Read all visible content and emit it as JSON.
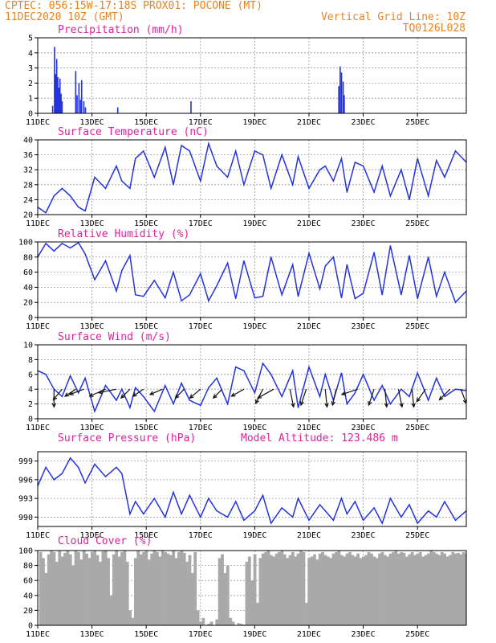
{
  "header": {
    "line1": "CPTEC:  056:15W-17:18S  PROX01: POCONE (MT)",
    "line2": "11DEC2020 10Z (GMT)",
    "grid_note": "Vertical Grid Line: 10Z",
    "code": "TQ0126L028"
  },
  "model_altitude": "Model Altitude: 123.486 m",
  "x_ticks": [
    "11DEC",
    "13DEC",
    "15DEC",
    "17DEC",
    "19DEC",
    "21DEC",
    "23DEC",
    "25DEC"
  ],
  "colors": {
    "line": "#2233dd",
    "title": "#e0209a",
    "header": "#e8821e",
    "cloud": "#a9a9a9"
  },
  "chart_data": [
    {
      "type": "bar",
      "title": "Precipitation (mm/h)",
      "ylim": [
        0,
        5
      ],
      "yticks": [
        "0",
        "1",
        "2",
        "3",
        "4",
        "5"
      ],
      "x_unit": "days since 11DEC 10Z",
      "points": [
        [
          0.55,
          0.5
        ],
        [
          0.62,
          4.4
        ],
        [
          0.66,
          2.6
        ],
        [
          0.7,
          3.6
        ],
        [
          0.74,
          2.4
        ],
        [
          0.78,
          1.7
        ],
        [
          0.82,
          2.3
        ],
        [
          0.86,
          1.3
        ],
        [
          0.9,
          0.8
        ],
        [
          1.4,
          2.8
        ],
        [
          1.45,
          1.2
        ],
        [
          1.52,
          2.0
        ],
        [
          1.58,
          0.9
        ],
        [
          1.62,
          2.2
        ],
        [
          1.7,
          0.8
        ],
        [
          1.76,
          0.4
        ],
        [
          2.95,
          0.4
        ],
        [
          5.65,
          0.8
        ],
        [
          11.1,
          1.8
        ],
        [
          11.15,
          3.1
        ],
        [
          11.2,
          2.7
        ],
        [
          11.26,
          2.1
        ],
        [
          11.3,
          1.2
        ]
      ]
    },
    {
      "type": "line",
      "title": "Surface Temperature (nC)",
      "ylim": [
        20,
        40
      ],
      "yticks": [
        "20",
        "24",
        "28",
        "32",
        "36",
        "40"
      ],
      "x": [
        0,
        0.3,
        0.6,
        0.9,
        1.2,
        1.5,
        1.75,
        2.1,
        2.5,
        2.9,
        3.1,
        3.4,
        3.6,
        3.9,
        4.3,
        4.7,
        5.0,
        5.3,
        5.6,
        6.0,
        6.3,
        6.6,
        7.0,
        7.3,
        7.6,
        8.0,
        8.3,
        8.6,
        9.0,
        9.4,
        9.6,
        10.0,
        10.4,
        10.6,
        10.9,
        11.2,
        11.4,
        11.7,
        12.0,
        12.4,
        12.7,
        13.0,
        13.4,
        13.7,
        14.0,
        14.4,
        14.7,
        15.0,
        15.4,
        15.8
      ],
      "values": [
        22,
        20.5,
        25,
        27,
        25,
        22,
        21,
        30,
        27,
        33,
        29,
        27,
        35,
        37,
        30,
        38,
        28,
        38.5,
        37,
        29,
        39,
        33,
        30,
        37,
        28,
        37,
        36,
        27,
        36,
        28,
        35.5,
        27,
        32,
        33,
        29,
        35,
        26,
        34,
        33,
        26,
        33,
        25,
        32,
        24,
        35,
        25,
        34.5,
        30,
        37,
        34
      ]
    },
    {
      "type": "line",
      "title": "Relative Humidity (%)",
      "ylim": [
        0,
        100
      ],
      "yticks": [
        "0",
        "20",
        "40",
        "60",
        "80",
        "100"
      ],
      "x": [
        0,
        0.3,
        0.6,
        0.9,
        1.2,
        1.5,
        1.75,
        2.1,
        2.5,
        2.9,
        3.1,
        3.4,
        3.6,
        3.9,
        4.3,
        4.7,
        5.0,
        5.3,
        5.6,
        6.0,
        6.3,
        6.6,
        7.0,
        7.3,
        7.6,
        8.0,
        8.3,
        8.6,
        9.0,
        9.4,
        9.6,
        10.0,
        10.4,
        10.6,
        10.9,
        11.2,
        11.4,
        11.7,
        12.0,
        12.4,
        12.7,
        13.0,
        13.4,
        13.7,
        14.0,
        14.4,
        14.7,
        15.0,
        15.4,
        15.8
      ],
      "values": [
        80,
        98,
        88,
        98,
        92,
        99,
        84,
        50,
        75,
        35,
        62,
        82,
        30,
        28,
        49,
        26,
        60,
        22,
        30,
        58,
        22,
        42,
        72,
        25,
        75,
        26,
        28,
        80,
        30,
        70,
        28,
        85,
        38,
        68,
        80,
        26,
        70,
        25,
        32,
        86,
        30,
        95,
        30,
        82,
        25,
        80,
        28,
        60,
        20,
        35
      ]
    },
    {
      "type": "line",
      "title": "Surface Wind (m/s)",
      "ylim": [
        0,
        10
      ],
      "yticks": [
        "0",
        "2",
        "4",
        "6",
        "8",
        "10"
      ],
      "x": [
        0,
        0.3,
        0.6,
        0.9,
        1.2,
        1.5,
        1.75,
        2.1,
        2.5,
        2.9,
        3.1,
        3.4,
        3.6,
        3.9,
        4.3,
        4.7,
        5.0,
        5.3,
        5.6,
        6.0,
        6.3,
        6.6,
        7.0,
        7.3,
        7.6,
        8.0,
        8.3,
        8.6,
        9.0,
        9.4,
        9.6,
        10.0,
        10.4,
        10.6,
        10.9,
        11.2,
        11.4,
        11.7,
        12.0,
        12.4,
        12.7,
        13.0,
        13.4,
        13.7,
        14.0,
        14.4,
        14.7,
        15.0,
        15.4,
        15.8
      ],
      "values": [
        6.5,
        6.0,
        4.0,
        3.0,
        5.8,
        3.5,
        5.5,
        1.0,
        4.5,
        2.5,
        4.0,
        1.5,
        4.2,
        3.0,
        1.0,
        4.5,
        2.0,
        4.8,
        2.5,
        1.8,
        4.2,
        5.5,
        2.0,
        7.0,
        6.5,
        3.5,
        7.5,
        6.0,
        3.0,
        6.5,
        1.5,
        7.0,
        3.0,
        6.0,
        2.5,
        6.2,
        2.0,
        3.5,
        6.0,
        2.5,
        4.5,
        2.0,
        4.0,
        3.0,
        6.2,
        2.5,
        5.5,
        3.0,
        4.0,
        3.8
      ],
      "wind_arrows": [
        [
          0.6,
          0,
          -1
        ],
        [
          0.9,
          -0.5,
          -0.6
        ],
        [
          1.4,
          -0.6,
          -0.4
        ],
        [
          1.7,
          -0.8,
          -0.3
        ],
        [
          2.5,
          -0.9,
          -0.4
        ],
        [
          2.9,
          -1.0,
          -0.2
        ],
        [
          3.4,
          -0.5,
          -0.5
        ],
        [
          3.9,
          -0.6,
          -0.4
        ],
        [
          4.6,
          -0.7,
          -0.3
        ],
        [
          5.4,
          -0.5,
          -0.5
        ],
        [
          6.0,
          -0.6,
          -0.5
        ],
        [
          6.8,
          -0.5,
          -0.5
        ],
        [
          7.6,
          -0.7,
          -0.4
        ],
        [
          8.3,
          -0.4,
          -0.8
        ],
        [
          8.7,
          -0.9,
          -0.5
        ],
        [
          9.3,
          0.2,
          -1
        ],
        [
          9.9,
          -0.3,
          -0.9
        ],
        [
          10.6,
          0.1,
          -1
        ],
        [
          11.0,
          -0.2,
          -0.9
        ],
        [
          11.8,
          -0.9,
          -0.3
        ],
        [
          12.4,
          -0.3,
          -0.9
        ],
        [
          12.8,
          0.1,
          -1
        ],
        [
          13.3,
          0.2,
          -1
        ],
        [
          13.8,
          0.1,
          -1
        ],
        [
          14.3,
          -0.5,
          -0.7
        ],
        [
          15.2,
          -0.6,
          -0.6
        ],
        [
          15.6,
          0.3,
          -0.8
        ]
      ]
    },
    {
      "type": "line",
      "title": "Surface Pressure (hPa)",
      "ylim": [
        988.5,
        1000.5
      ],
      "yticks": [
        "990",
        "993",
        "996",
        "999"
      ],
      "x": [
        0,
        0.3,
        0.6,
        0.9,
        1.2,
        1.5,
        1.75,
        2.1,
        2.5,
        2.9,
        3.1,
        3.4,
        3.6,
        3.9,
        4.3,
        4.7,
        5.0,
        5.3,
        5.6,
        6.0,
        6.3,
        6.6,
        7.0,
        7.3,
        7.6,
        8.0,
        8.3,
        8.6,
        9.0,
        9.4,
        9.6,
        10.0,
        10.4,
        10.6,
        10.9,
        11.2,
        11.4,
        11.7,
        12.0,
        12.4,
        12.7,
        13.0,
        13.4,
        13.7,
        14.0,
        14.4,
        14.7,
        15.0,
        15.4,
        15.8
      ],
      "values": [
        995,
        998,
        996,
        997,
        999.5,
        998,
        995.5,
        998.5,
        996.5,
        998,
        997,
        990.5,
        992.5,
        990.5,
        993,
        990,
        994,
        990.5,
        993.5,
        990,
        993,
        991,
        990,
        992.5,
        989.5,
        991,
        993.5,
        989,
        991.5,
        990,
        993,
        989.5,
        992,
        991,
        989.5,
        993,
        990.5,
        992.5,
        989.5,
        991.5,
        989,
        993,
        990,
        992,
        989,
        991,
        990,
        992.5,
        989.5,
        991
      ]
    },
    {
      "type": "bar",
      "title": "Cloud Cover (%)",
      "ylim": [
        0,
        100
      ],
      "yticks": [
        "0",
        "20",
        "40",
        "60",
        "80",
        "100"
      ],
      "x_start": 0.1,
      "x_step": 0.1,
      "values": [
        98,
        90,
        70,
        95,
        100,
        98,
        85,
        100,
        92,
        97,
        100,
        95,
        80,
        100,
        98,
        88,
        100,
        96,
        90,
        98,
        100,
        94,
        85,
        99,
        100,
        90,
        40,
        95,
        100,
        92,
        98,
        100,
        85,
        20,
        10,
        90,
        100,
        95,
        98,
        100,
        88,
        96,
        100,
        98,
        92,
        100,
        98,
        96,
        94,
        100,
        90,
        98,
        100,
        97,
        85,
        94,
        70,
        98,
        20,
        5,
        10,
        0,
        2,
        5,
        0,
        8,
        90,
        95,
        70,
        80,
        10,
        5,
        0,
        3,
        2,
        1,
        85,
        92,
        60,
        95,
        30,
        90,
        96,
        98,
        100,
        94,
        92,
        96,
        98,
        100,
        95,
        90,
        94,
        98,
        92,
        96,
        100,
        98,
        30,
        90,
        92,
        95,
        88,
        96,
        98,
        94,
        92,
        90,
        96,
        98,
        100,
        94,
        92,
        96,
        98,
        94,
        92,
        96,
        90,
        92,
        94,
        98,
        96,
        92,
        90,
        96,
        98,
        94,
        92,
        96,
        98,
        100,
        96,
        98,
        97,
        92,
        95,
        98,
        94,
        96,
        98,
        92,
        94,
        96,
        100,
        98,
        96,
        94,
        98,
        96,
        92,
        94,
        98,
        96,
        97,
        95,
        98,
        96,
        94,
        98
      ]
    }
  ]
}
